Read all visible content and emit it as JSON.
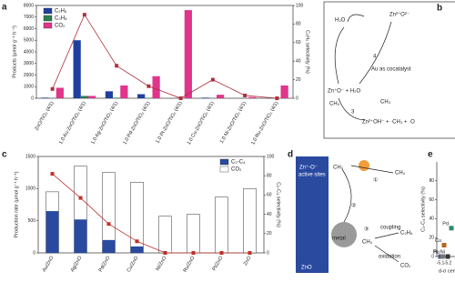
{
  "panel_labels": [
    "a",
    "b",
    "c",
    "d",
    "e"
  ],
  "chart_data": [
    {
      "type": "bar_line",
      "bar_mode": "grouped",
      "legend": "upper left",
      "ylabel": "Products (μmol g⁻¹ h⁻¹)",
      "y2label": "C₂H₆ selectivity (%)",
      "categories": [
        "ZnO/TiO₂ (4/1)",
        "1.0 Au-ZnO/TiO₂ (4/1)",
        "1.0 Ag-ZnO/TiO₂ (4/1)",
        "1.0 Pd-ZnO/TiO₂ (4/1)",
        "1.0 Pt-ZnO/TiO₂ (4/1)",
        "1.0 Cu-ZnO/TiO₂ (4/1)",
        "1.0 Ni-ZnO/TiO₂ (4/1)",
        "1.0 Ru-ZnO/TiO₂ (4/1)"
      ],
      "series": [
        {
          "name": "C₂H₆",
          "color": "#1f3f9f",
          "values": [
            50,
            5000,
            600,
            350,
            0,
            50,
            0,
            0
          ]
        },
        {
          "name": "C₃H₈",
          "color": "#2e7d4f",
          "values": [
            0,
            200,
            50,
            30,
            0,
            0,
            0,
            0
          ]
        },
        {
          "name": "CO₂",
          "color": "#e0358a",
          "values": [
            900,
            200,
            1100,
            1900,
            7600,
            300,
            100,
            1100
          ]
        },
        {
          "color": "#b03040",
          "axis": "y2",
          "values": [
            10,
            90,
            35,
            13,
            0,
            20,
            3,
            0
          ]
        }
      ],
      "ylim": [
        0,
        8000
      ],
      "yticks": [
        0,
        1000,
        2000,
        3000,
        4000,
        5000,
        6000,
        7000,
        8000
      ],
      "y2lim": [
        0,
        100
      ],
      "y2ticks": [
        0,
        20,
        40,
        60,
        80,
        100
      ]
    },
    {
      "type": "bar_line",
      "bar_mode": "overlay",
      "legend": "upper right",
      "ylabel": "Production rate (μmol g⁻¹ h⁻¹)",
      "y2label": "C₂-C₄ selectivity (%)",
      "categories": [
        "Au/ZnO",
        "Ag/ZnO",
        "Pd/ZnO",
        "Cu/ZnO",
        "Ni/ZnO",
        "Ru/ZnO",
        "Pt/ZnO",
        "ZnO"
      ],
      "series": [
        {
          "name": "C₂-C₄",
          "color": "#2a4aa0",
          "values": [
            650,
            520,
            200,
            100,
            0,
            0,
            0,
            0
          ]
        },
        {
          "name": "CO₂",
          "color": "#ffffff",
          "values": [
            950,
            1350,
            1250,
            1100,
            570,
            600,
            870,
            1000
          ]
        },
        {
          "color": "#c0302a",
          "axis": "y2",
          "values": [
            82,
            57,
            30,
            12,
            0,
            0,
            0,
            0
          ]
        }
      ],
      "ylim": [
        0,
        1500
      ],
      "yticks": [
        0,
        500,
        1000,
        1500
      ],
      "y2lim": [
        0,
        100
      ],
      "y2ticks": [
        0,
        20,
        40,
        60,
        80,
        100
      ]
    },
    {
      "type": "scatter",
      "ylabel": "C₂-C₄ selectivity (%)",
      "xlabel": "d-σ center (e",
      "labels": [
        "Pt",
        "Ru",
        "Ni",
        "Cu",
        "Pd"
      ],
      "x": [
        -5.1,
        -5.13,
        -5.2,
        -5.15,
        -5.25
      ],
      "values": [
        0,
        0,
        0,
        12,
        30
      ],
      "colors": [
        "#4a5a8a",
        "#777777",
        "#333333",
        "#b5651d",
        "#2e8b6e"
      ],
      "xlim": [
        -5.05,
        -5.3
      ],
      "xticks": [
        -5.1,
        -5.2
      ],
      "ylim": [
        0,
        100
      ],
      "yticks": [
        0,
        20,
        40,
        60,
        80
      ]
    }
  ],
  "diagram_b": {
    "h2o": "H₂O",
    "top": "Zn²⁺O²⁻",
    "step4": "4",
    "cocatalyst": "Au as cocatalyst",
    "mid": "Zn⁺O⁻ + H₂O",
    "ch4": "CH₄",
    "ch3": "CH₃",
    "step3": "3",
    "bottom": "Zn²⁺OH⁻ + ·CH₃ + ·O"
  },
  "diagram_d": {
    "sites": "Zn⁺-O⁻",
    "sites2": "active sites",
    "ch3a": "CH₃",
    "ch4": "CH₄",
    "s1": "①",
    "s2": "②",
    "s3": "③",
    "metal": "metal",
    "ch3b": "CH₃",
    "coupling": "coupling",
    "c2h6": "C₂H₆",
    "oxidation": "oxidation",
    "co2": "CO₂",
    "zno": "ZnO"
  }
}
